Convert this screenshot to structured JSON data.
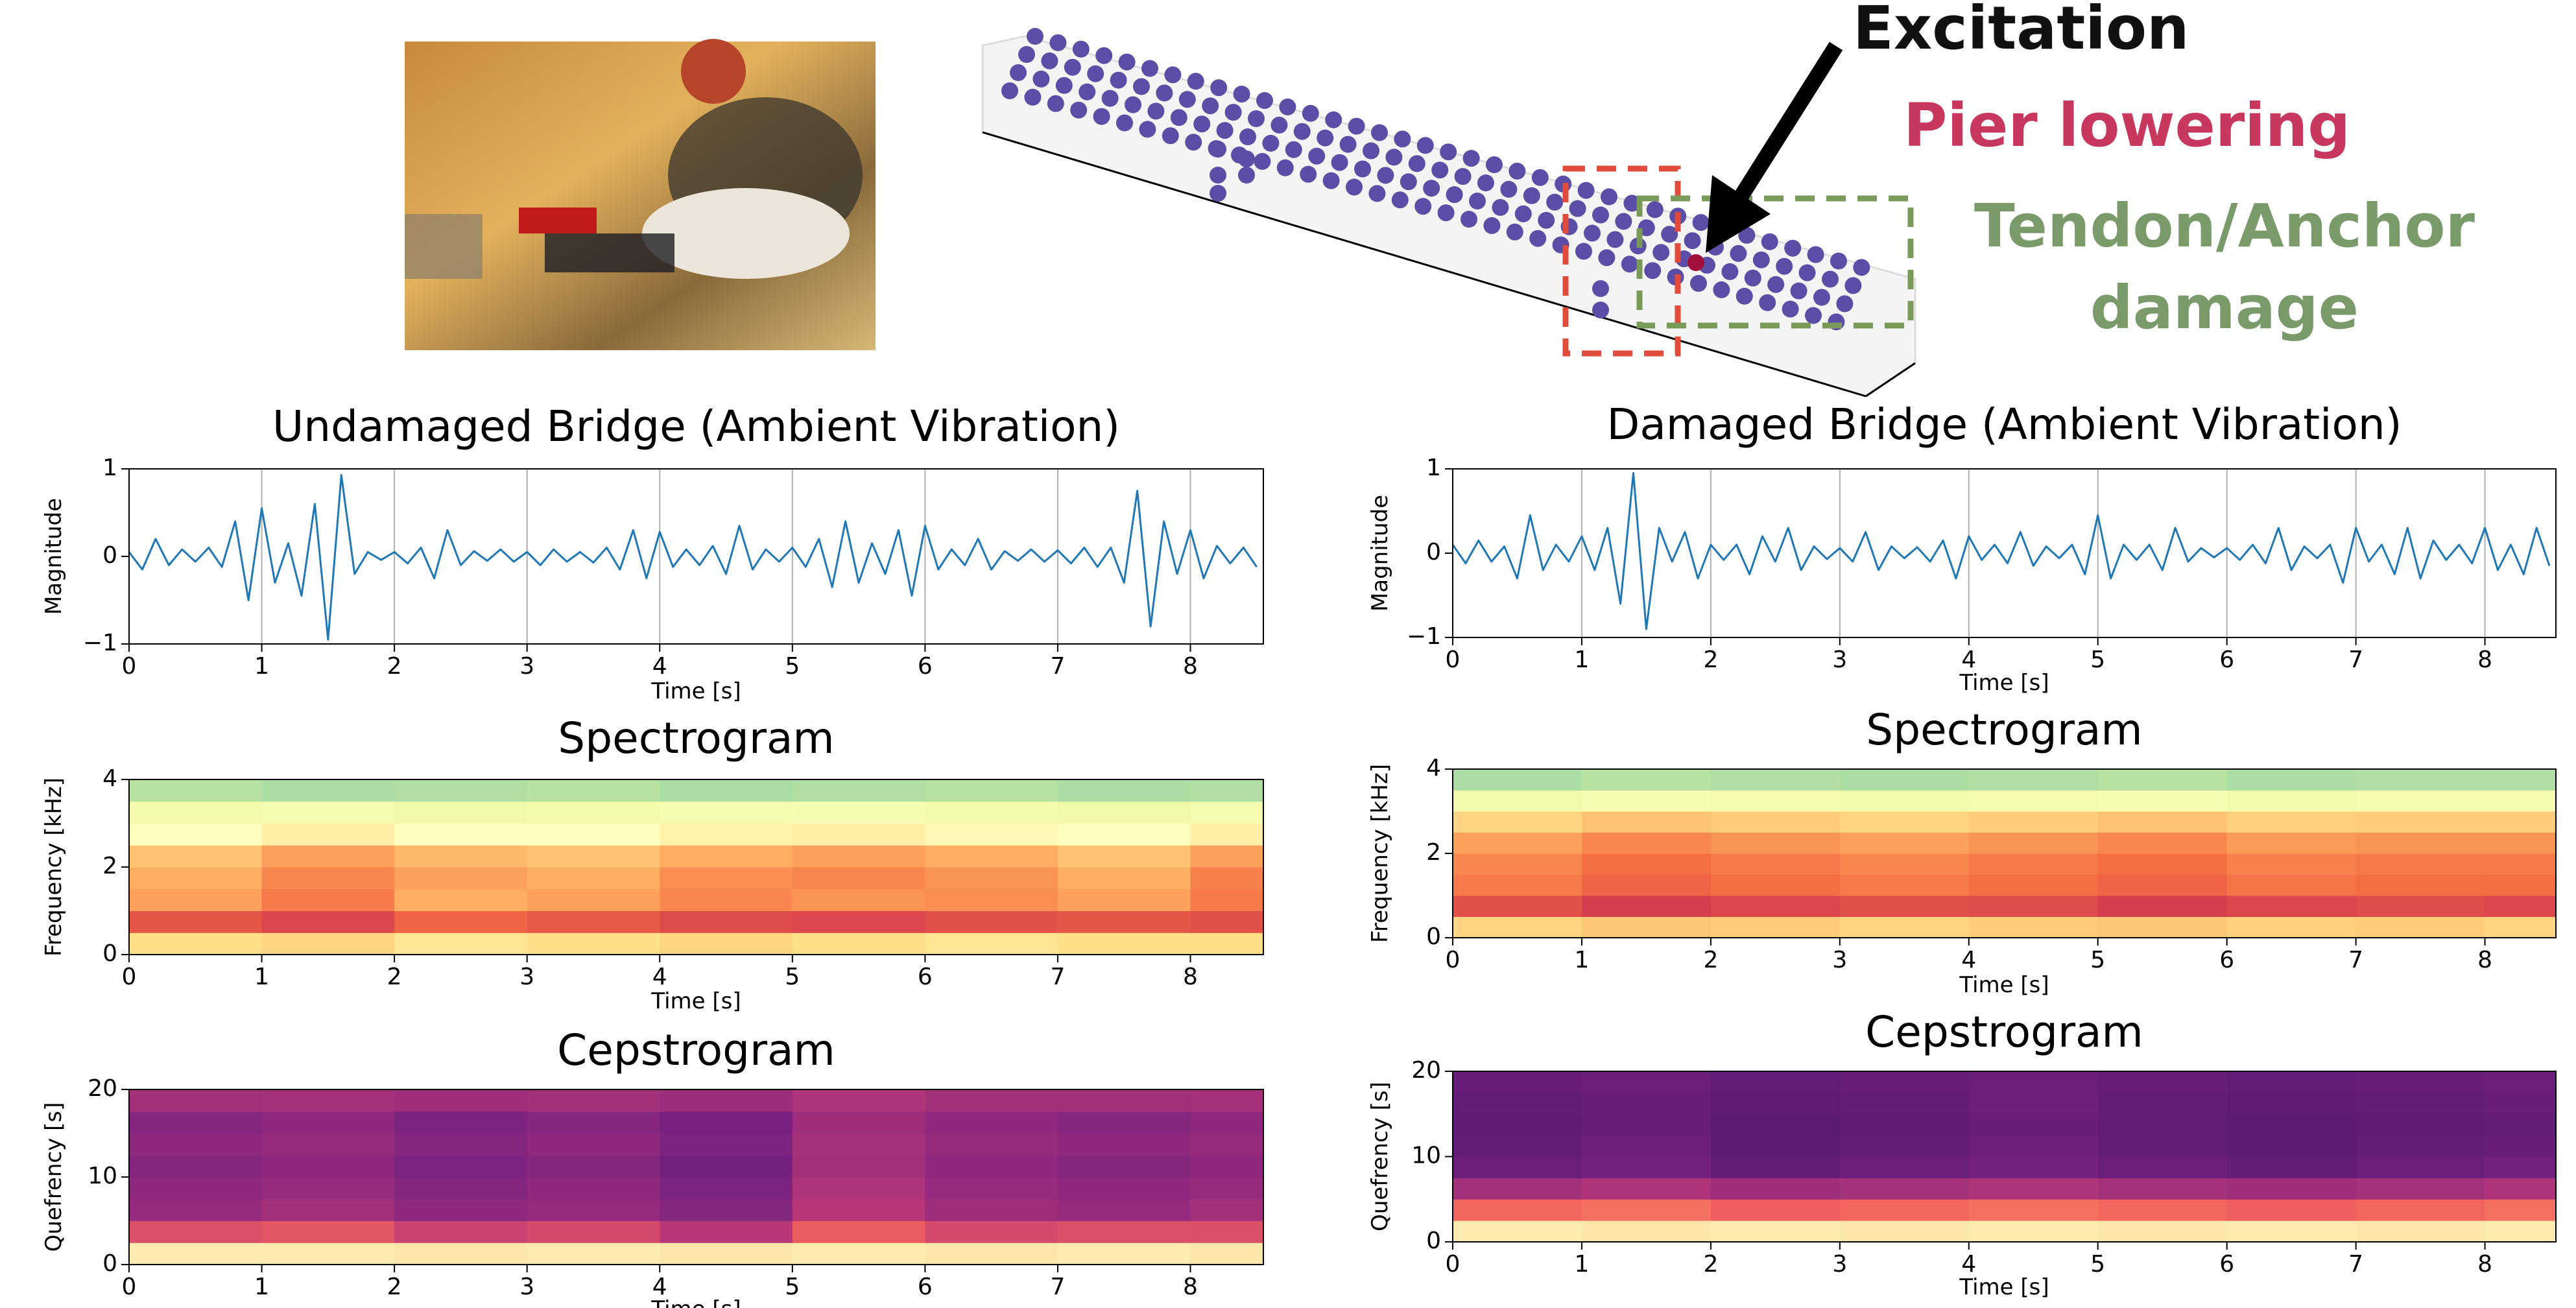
{
  "diagram": {
    "labels": {
      "excitation": "Excitation",
      "pier_lowering": "Pier lowering",
      "tendon_damage": [
        "Tendon/Anchor",
        "damage"
      ]
    }
  },
  "chart_data": [
    {
      "type": "line",
      "title": "Undamaged Bridge (Ambient Vibration)",
      "xlabel": "Time [s]",
      "ylabel": "Magnitude",
      "color": "#1f77b4",
      "grid": "x",
      "xlim": [
        0,
        8.55
      ],
      "ylim": [
        -1,
        1
      ],
      "xticks": [
        0,
        1,
        2,
        3,
        4,
        5,
        6,
        7,
        8
      ],
      "yticks": [
        {
          "value": -1,
          "label": "−1"
        },
        0,
        1
      ],
      "x": [
        0,
        0.1,
        0.2,
        0.3,
        0.4,
        0.5,
        0.6,
        0.7,
        0.8,
        0.9,
        1,
        1.1,
        1.2,
        1.3,
        1.4,
        1.5,
        1.6,
        1.7,
        1.8,
        1.9,
        2,
        2.1,
        2.2,
        2.3,
        2.4,
        2.5,
        2.6,
        2.7,
        2.8,
        2.9,
        3,
        3.1,
        3.2,
        3.3,
        3.4,
        3.5,
        3.6,
        3.7,
        3.8,
        3.9,
        4,
        4.1,
        4.2,
        4.3,
        4.4,
        4.5,
        4.6,
        4.7,
        4.8,
        4.9,
        5,
        5.1,
        5.2,
        5.3,
        5.4,
        5.5,
        5.6,
        5.7,
        5.8,
        5.9,
        6,
        6.1,
        6.2,
        6.3,
        6.4,
        6.5,
        6.6,
        6.7,
        6.8,
        6.9,
        7,
        7.1,
        7.2,
        7.3,
        7.4,
        7.5,
        7.6,
        7.7,
        7.8,
        7.9,
        8,
        8.1,
        8.2,
        8.3,
        8.4,
        8.5
      ],
      "values": [
        0.05,
        -0.15,
        0.2,
        -0.1,
        0.08,
        -0.06,
        0.1,
        -0.12,
        0.4,
        -0.5,
        0.55,
        -0.3,
        0.15,
        -0.45,
        0.6,
        -0.95,
        0.93,
        -0.2,
        0.05,
        -0.04,
        0.05,
        -0.08,
        0.1,
        -0.25,
        0.3,
        -0.1,
        0.06,
        -0.05,
        0.08,
        -0.06,
        0.05,
        -0.1,
        0.08,
        -0.06,
        0.05,
        -0.07,
        0.1,
        -0.15,
        0.3,
        -0.25,
        0.28,
        -0.12,
        0.08,
        -0.1,
        0.12,
        -0.2,
        0.35,
        -0.15,
        0.08,
        -0.06,
        0.1,
        -0.12,
        0.2,
        -0.35,
        0.4,
        -0.3,
        0.15,
        -0.2,
        0.3,
        -0.45,
        0.35,
        -0.15,
        0.08,
        -0.1,
        0.2,
        -0.15,
        0.06,
        -0.05,
        0.08,
        -0.06,
        0.07,
        -0.08,
        0.1,
        -0.12,
        0.1,
        -0.3,
        0.75,
        -0.8,
        0.4,
        -0.2,
        0.3,
        -0.25,
        0.12,
        -0.08,
        0.1,
        -0.12
      ]
    },
    {
      "type": "heatmap",
      "title": "Spectrogram",
      "xlabel": "Time [s]",
      "ylabel": "Frequency [kHz]",
      "colormap": "Spectral_r",
      "xlim": [
        0,
        8.55
      ],
      "ylim": [
        0,
        4
      ],
      "xticks": [
        0,
        1,
        2,
        3,
        4,
        5,
        6,
        7,
        8
      ],
      "yticks": [
        0,
        2,
        4
      ],
      "xbins": [
        0,
        1,
        2,
        3,
        4,
        5,
        6,
        7,
        8,
        8.55
      ],
      "ybins": [
        0,
        0.5,
        1,
        1.5,
        2,
        2.5,
        3,
        3.5,
        4
      ],
      "values": [
        [
          0.6,
          0.62,
          0.58,
          0.6,
          0.62,
          0.6,
          0.58,
          0.6,
          0.6
        ],
        [
          0.85,
          0.88,
          0.82,
          0.84,
          0.87,
          0.88,
          0.86,
          0.85,
          0.86
        ],
        [
          0.72,
          0.78,
          0.7,
          0.72,
          0.76,
          0.74,
          0.75,
          0.72,
          0.78
        ],
        [
          0.7,
          0.76,
          0.72,
          0.7,
          0.75,
          0.76,
          0.74,
          0.7,
          0.77
        ],
        [
          0.66,
          0.72,
          0.68,
          0.66,
          0.7,
          0.72,
          0.7,
          0.66,
          0.72
        ],
        [
          0.5,
          0.55,
          0.5,
          0.5,
          0.54,
          0.55,
          0.52,
          0.5,
          0.55
        ],
        [
          0.45,
          0.46,
          0.44,
          0.45,
          0.46,
          0.47,
          0.45,
          0.44,
          0.46
        ],
        [
          0.32,
          0.3,
          0.31,
          0.32,
          0.3,
          0.31,
          0.32,
          0.3,
          0.31
        ]
      ]
    },
    {
      "type": "heatmap",
      "title": "Cepstrogram",
      "xlabel": "Time [s]",
      "ylabel": "Quefrency [s]",
      "colormap": "magma",
      "xlim": [
        0,
        8.55
      ],
      "ylim": [
        0,
        20
      ],
      "xticks": [
        0,
        1,
        2,
        3,
        4,
        5,
        6,
        7,
        8
      ],
      "yticks": [
        0,
        10,
        20
      ],
      "xbins": [
        0,
        1,
        2,
        3,
        4,
        5,
        6,
        7,
        8,
        8.55
      ],
      "ybins": [
        0,
        2.5,
        5,
        7.5,
        10,
        12.5,
        15,
        17.5,
        20
      ],
      "values": [
        [
          0.96,
          0.96,
          0.95,
          0.96,
          0.95,
          0.96,
          0.95,
          0.96,
          0.95
        ],
        [
          0.6,
          0.62,
          0.55,
          0.58,
          0.5,
          0.65,
          0.58,
          0.6,
          0.6
        ],
        [
          0.42,
          0.45,
          0.4,
          0.42,
          0.38,
          0.5,
          0.44,
          0.42,
          0.45
        ],
        [
          0.4,
          0.42,
          0.38,
          0.4,
          0.36,
          0.48,
          0.42,
          0.4,
          0.42
        ],
        [
          0.38,
          0.4,
          0.36,
          0.38,
          0.34,
          0.45,
          0.4,
          0.38,
          0.4
        ],
        [
          0.4,
          0.42,
          0.38,
          0.4,
          0.36,
          0.46,
          0.42,
          0.4,
          0.42
        ],
        [
          0.38,
          0.4,
          0.36,
          0.38,
          0.35,
          0.44,
          0.4,
          0.38,
          0.4
        ],
        [
          0.45,
          0.46,
          0.44,
          0.45,
          0.43,
          0.48,
          0.45,
          0.45,
          0.46
        ]
      ]
    },
    {
      "type": "line",
      "title": "Damaged Bridge (Ambient Vibration)",
      "xlabel": "Time [s]",
      "ylabel": "Magnitude",
      "color": "#1f77b4",
      "grid": "x",
      "xlim": [
        0,
        8.55
      ],
      "ylim": [
        -1,
        1
      ],
      "xticks": [
        0,
        1,
        2,
        3,
        4,
        5,
        6,
        7,
        8
      ],
      "yticks": [
        {
          "value": -1,
          "label": "−1"
        },
        0,
        1
      ],
      "x": [
        0,
        0.1,
        0.2,
        0.3,
        0.4,
        0.5,
        0.6,
        0.7,
        0.8,
        0.9,
        1,
        1.1,
        1.2,
        1.3,
        1.4,
        1.5,
        1.6,
        1.7,
        1.8,
        1.9,
        2,
        2.1,
        2.2,
        2.3,
        2.4,
        2.5,
        2.6,
        2.7,
        2.8,
        2.9,
        3,
        3.1,
        3.2,
        3.3,
        3.4,
        3.5,
        3.6,
        3.7,
        3.8,
        3.9,
        4,
        4.1,
        4.2,
        4.3,
        4.4,
        4.5,
        4.6,
        4.7,
        4.8,
        4.9,
        5,
        5.1,
        5.2,
        5.3,
        5.4,
        5.5,
        5.6,
        5.7,
        5.8,
        5.9,
        6,
        6.1,
        6.2,
        6.3,
        6.4,
        6.5,
        6.6,
        6.7,
        6.8,
        6.9,
        7,
        7.1,
        7.2,
        7.3,
        7.4,
        7.5,
        7.6,
        7.7,
        7.8,
        7.9,
        8,
        8.1,
        8.2,
        8.3,
        8.4,
        8.5
      ],
      "values": [
        0.1,
        -0.12,
        0.15,
        -0.1,
        0.08,
        -0.3,
        0.45,
        -0.2,
        0.1,
        -0.1,
        0.2,
        -0.2,
        0.3,
        -0.6,
        0.95,
        -0.9,
        0.3,
        -0.1,
        0.25,
        -0.3,
        0.1,
        -0.08,
        0.1,
        -0.25,
        0.2,
        -0.1,
        0.3,
        -0.2,
        0.08,
        -0.07,
        0.06,
        -0.1,
        0.25,
        -0.2,
        0.08,
        -0.06,
        0.07,
        -0.1,
        0.15,
        -0.3,
        0.2,
        -0.08,
        0.1,
        -0.12,
        0.25,
        -0.15,
        0.08,
        -0.06,
        0.1,
        -0.25,
        0.45,
        -0.3,
        0.1,
        -0.08,
        0.1,
        -0.2,
        0.3,
        -0.1,
        0.06,
        -0.05,
        0.06,
        -0.08,
        0.1,
        -0.12,
        0.3,
        -0.2,
        0.08,
        -0.06,
        0.1,
        -0.35,
        0.3,
        -0.1,
        0.1,
        -0.25,
        0.3,
        -0.3,
        0.15,
        -0.08,
        0.1,
        -0.12,
        0.3,
        -0.2,
        0.1,
        -0.25,
        0.3,
        -0.15
      ]
    },
    {
      "type": "heatmap",
      "title": "Spectrogram",
      "xlabel": "Time [s]",
      "ylabel": "Frequency [kHz]",
      "colormap": "Spectral_r",
      "xlim": [
        0,
        8.55
      ],
      "ylim": [
        0,
        4
      ],
      "xticks": [
        0,
        1,
        2,
        3,
        4,
        5,
        6,
        7,
        8
      ],
      "yticks": [
        0,
        2,
        4
      ],
      "xbins": [
        0,
        1,
        2,
        3,
        4,
        5,
        6,
        7,
        8,
        8.55
      ],
      "ybins": [
        0,
        0.5,
        1,
        1.5,
        2,
        2.5,
        3,
        3.5,
        4
      ],
      "values": [
        [
          0.62,
          0.65,
          0.64,
          0.62,
          0.64,
          0.65,
          0.63,
          0.64,
          0.62
        ],
        [
          0.86,
          0.9,
          0.88,
          0.86,
          0.87,
          0.9,
          0.88,
          0.87,
          0.88
        ],
        [
          0.78,
          0.82,
          0.8,
          0.78,
          0.8,
          0.82,
          0.79,
          0.8,
          0.8
        ],
        [
          0.76,
          0.8,
          0.78,
          0.76,
          0.78,
          0.8,
          0.77,
          0.78,
          0.78
        ],
        [
          0.72,
          0.76,
          0.74,
          0.72,
          0.74,
          0.76,
          0.73,
          0.74,
          0.74
        ],
        [
          0.62,
          0.66,
          0.64,
          0.62,
          0.64,
          0.66,
          0.63,
          0.64,
          0.64
        ],
        [
          0.45,
          0.47,
          0.46,
          0.45,
          0.46,
          0.47,
          0.45,
          0.46,
          0.46
        ],
        [
          0.3,
          0.32,
          0.31,
          0.3,
          0.31,
          0.32,
          0.3,
          0.31,
          0.31
        ]
      ]
    },
    {
      "type": "heatmap",
      "title": "Cepstrogram",
      "xlabel": "Time [s]",
      "ylabel": "Quefrency [s]",
      "colormap": "magma",
      "xlim": [
        0,
        8.55
      ],
      "ylim": [
        0,
        20
      ],
      "xticks": [
        0,
        1,
        2,
        3,
        4,
        5,
        6,
        7,
        8
      ],
      "yticks": [
        0,
        10,
        20
      ],
      "xbins": [
        0,
        1,
        2,
        3,
        4,
        5,
        6,
        7,
        8,
        8.55
      ],
      "ybins": [
        0,
        2.5,
        5,
        7.5,
        10,
        12.5,
        15,
        17.5,
        20
      ],
      "values": [
        [
          0.96,
          0.95,
          0.96,
          0.95,
          0.96,
          0.95,
          0.96,
          0.95,
          0.96
        ],
        [
          0.68,
          0.7,
          0.66,
          0.68,
          0.7,
          0.68,
          0.66,
          0.68,
          0.7
        ],
        [
          0.45,
          0.48,
          0.44,
          0.46,
          0.48,
          0.46,
          0.44,
          0.46,
          0.48
        ],
        [
          0.32,
          0.34,
          0.3,
          0.32,
          0.34,
          0.32,
          0.3,
          0.32,
          0.34
        ],
        [
          0.3,
          0.32,
          0.28,
          0.3,
          0.32,
          0.3,
          0.28,
          0.3,
          0.31
        ],
        [
          0.29,
          0.31,
          0.28,
          0.29,
          0.31,
          0.3,
          0.28,
          0.29,
          0.3
        ],
        [
          0.3,
          0.31,
          0.29,
          0.3,
          0.32,
          0.3,
          0.29,
          0.3,
          0.31
        ],
        [
          0.31,
          0.32,
          0.3,
          0.31,
          0.32,
          0.31,
          0.3,
          0.31,
          0.32
        ]
      ]
    }
  ]
}
